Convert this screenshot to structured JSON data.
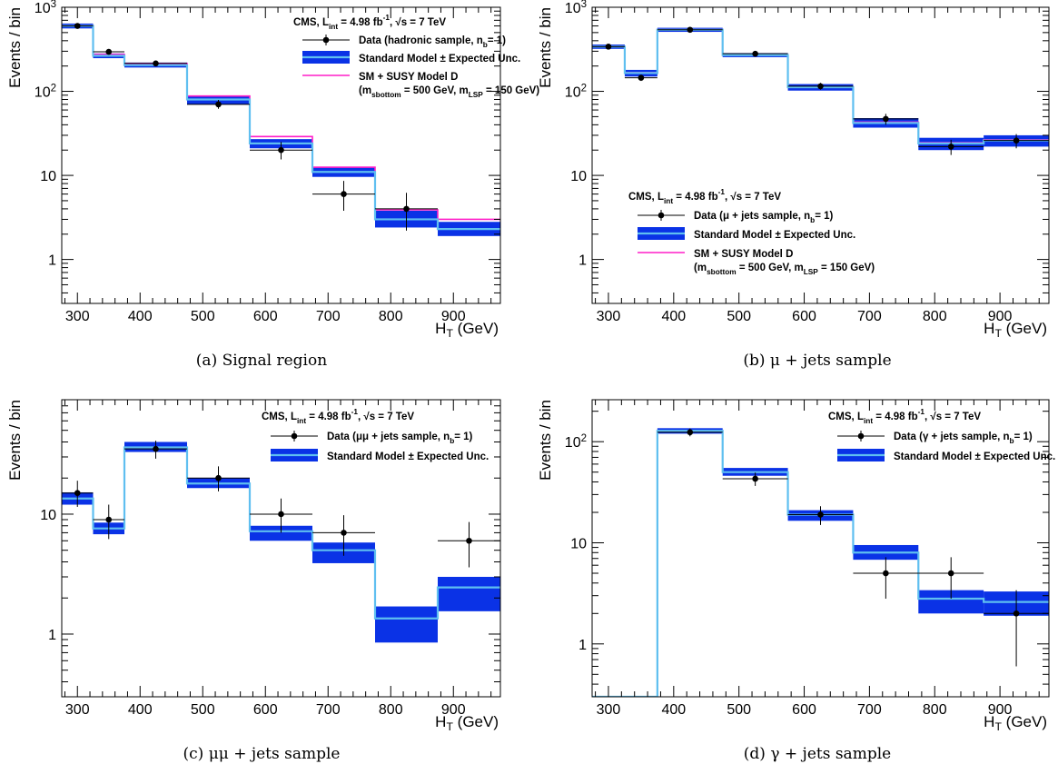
{
  "colors": {
    "sm_band": "#0a32e6",
    "sm_line": "#5fbff0",
    "susy": "#ff1ec8",
    "data": "#000000"
  },
  "chart_data": [
    {
      "id": "a",
      "type": "histogram",
      "caption": "(a) Signal region",
      "ylabel": "Events / bin",
      "xlabel": "H_T (GeV)",
      "yscale": "log",
      "xlim": [
        275,
        975
      ],
      "ylim": [
        0.3,
        1000
      ],
      "yticks": [
        1,
        10,
        100,
        1000
      ],
      "yticklabels": [
        "1",
        "10",
        "10^2",
        "10^3"
      ],
      "xticks": [
        300,
        400,
        500,
        600,
        700,
        800,
        900
      ],
      "bin_edges": [
        275,
        325,
        375,
        475,
        575,
        675,
        775,
        875,
        975
      ],
      "sm": [
        {
          "value": 600,
          "lo": 560,
          "hi": 640
        },
        {
          "value": 265,
          "lo": 248,
          "hi": 282
        },
        {
          "value": 205,
          "lo": 192,
          "hi": 220
        },
        {
          "value": 80,
          "lo": 70,
          "hi": 88
        },
        {
          "value": 24,
          "lo": 21,
          "hi": 27
        },
        {
          "value": 11,
          "lo": 9.6,
          "hi": 12.4
        },
        {
          "value": 3.0,
          "lo": 2.4,
          "hi": 3.8
        },
        {
          "value": 2.3,
          "lo": 1.9,
          "hi": 2.8
        }
      ],
      "susy": [
        605,
        275,
        215,
        88,
        29,
        12.5,
        3.9,
        3.0
      ],
      "data": [
        {
          "x": 300,
          "y": 600,
          "xerr": 25,
          "ylo": 575,
          "yhi": 625
        },
        {
          "x": 350,
          "y": 295,
          "xerr": 25,
          "ylo": 278,
          "yhi": 312
        },
        {
          "x": 425,
          "y": 215,
          "xerr": 50,
          "ylo": 200,
          "yhi": 230
        },
        {
          "x": 525,
          "y": 70,
          "xerr": 50,
          "ylo": 62,
          "yhi": 79
        },
        {
          "x": 625,
          "y": 20,
          "xerr": 50,
          "ylo": 15.5,
          "yhi": 25
        },
        {
          "x": 725,
          "y": 6,
          "xerr": 50,
          "ylo": 3.8,
          "yhi": 8.6
        },
        {
          "x": 825,
          "y": 4,
          "xerr": 50,
          "ylo": 2.2,
          "yhi": 6.2
        }
      ],
      "legend": {
        "position": "top-right",
        "header": "CMS, L_int = 4.98 fb^-1, √s = 7 TeV",
        "data": "Data (hadronic sample, n_b= 1)",
        "sm": "Standard Model ± Expected Unc.",
        "susy": "SM + SUSY Model D",
        "susy2": "(m_sbottom = 500 GeV, m_LSP = 150 GeV)"
      }
    },
    {
      "id": "b",
      "type": "histogram",
      "caption": "(b) μ + jets sample",
      "ylabel": "Events / bin",
      "xlabel": "H_T (GeV)",
      "yscale": "log",
      "xlim": [
        275,
        975
      ],
      "ylim": [
        0.3,
        1000
      ],
      "yticks": [
        1,
        10,
        100,
        1000
      ],
      "yticklabels": [
        "1",
        "10",
        "10^2",
        "10^3"
      ],
      "xticks": [
        300,
        400,
        500,
        600,
        700,
        800,
        900
      ],
      "bin_edges": [
        275,
        325,
        375,
        475,
        575,
        675,
        775,
        875,
        975
      ],
      "sm": [
        {
          "value": 340,
          "lo": 320,
          "hi": 360
        },
        {
          "value": 165,
          "lo": 150,
          "hi": 180
        },
        {
          "value": 540,
          "lo": 510,
          "hi": 570
        },
        {
          "value": 270,
          "lo": 255,
          "hi": 285
        },
        {
          "value": 112,
          "lo": 102,
          "hi": 122
        },
        {
          "value": 42,
          "lo": 37,
          "hi": 48
        },
        {
          "value": 24,
          "lo": 20,
          "hi": 28
        },
        {
          "value": 26,
          "lo": 22,
          "hi": 30
        }
      ],
      "susy": [
        342,
        167,
        545,
        272,
        113,
        43,
        24.5,
        26.5
      ],
      "data": [
        {
          "x": 300,
          "y": 340,
          "xerr": 25,
          "ylo": 322,
          "yhi": 358
        },
        {
          "x": 350,
          "y": 145,
          "xerr": 25,
          "ylo": 133,
          "yhi": 157
        },
        {
          "x": 425,
          "y": 540,
          "xerr": 50,
          "ylo": 517,
          "yhi": 563
        },
        {
          "x": 525,
          "y": 280,
          "xerr": 50,
          "ylo": 263,
          "yhi": 297
        },
        {
          "x": 625,
          "y": 115,
          "xerr": 50,
          "ylo": 105,
          "yhi": 126
        },
        {
          "x": 725,
          "y": 47,
          "xerr": 50,
          "ylo": 40,
          "yhi": 54
        },
        {
          "x": 825,
          "y": 22,
          "xerr": 50,
          "ylo": 17.5,
          "yhi": 26.5
        },
        {
          "x": 925,
          "y": 26,
          "xerr": 50,
          "ylo": 21,
          "yhi": 31
        }
      ],
      "legend": {
        "position": "middle-right",
        "header": "CMS, L_int = 4.98 fb^-1, √s = 7 TeV",
        "data": "Data (μ + jets sample, n_b= 1)",
        "sm": "Standard Model ± Expected Unc.",
        "susy": "SM + SUSY Model D",
        "susy2": "(m_sbottom = 500 GeV, m_LSP = 150 GeV)"
      }
    },
    {
      "id": "c",
      "type": "histogram",
      "caption": "(c) μμ + jets sample",
      "ylabel": "Events / bin",
      "xlabel": "H_T (GeV)",
      "yscale": "log",
      "xlim": [
        275,
        975
      ],
      "ylim": [
        0.3,
        90
      ],
      "yticks": [
        1,
        10
      ],
      "yticklabels": [
        "1",
        "10"
      ],
      "xticks": [
        300,
        400,
        500,
        600,
        700,
        800,
        900
      ],
      "bin_edges": [
        275,
        325,
        375,
        475,
        575,
        675,
        775,
        875,
        975
      ],
      "sm": [
        {
          "value": 13.5,
          "lo": 12,
          "hi": 15.2
        },
        {
          "value": 7.6,
          "lo": 6.8,
          "hi": 8.5
        },
        {
          "value": 36,
          "lo": 33,
          "hi": 40
        },
        {
          "value": 18,
          "lo": 16.5,
          "hi": 20
        },
        {
          "value": 7.2,
          "lo": 6.0,
          "hi": 8.0
        },
        {
          "value": 5.0,
          "lo": 3.9,
          "hi": 5.8
        },
        {
          "value": 1.35,
          "lo": 0.85,
          "hi": 1.7
        },
        {
          "value": 2.45,
          "lo": 1.55,
          "hi": 3.0
        }
      ],
      "susy": null,
      "data": [
        {
          "x": 300,
          "y": 15,
          "xerr": 25,
          "ylo": 11.5,
          "yhi": 19
        },
        {
          "x": 350,
          "y": 9,
          "xerr": 25,
          "ylo": 6.2,
          "yhi": 12
        },
        {
          "x": 425,
          "y": 35,
          "xerr": 50,
          "ylo": 29,
          "yhi": 41
        },
        {
          "x": 525,
          "y": 20,
          "xerr": 50,
          "ylo": 15.5,
          "yhi": 25
        },
        {
          "x": 625,
          "y": 10,
          "xerr": 50,
          "ylo": 7,
          "yhi": 13.5
        },
        {
          "x": 725,
          "y": 7,
          "xerr": 50,
          "ylo": 4.5,
          "yhi": 9.8
        },
        {
          "x": 925,
          "y": 6,
          "xerr": 50,
          "ylo": 3.6,
          "yhi": 8.6
        }
      ],
      "legend": {
        "position": "top-right",
        "header": "CMS, L_int = 4.98 fb^-1, √s = 7 TeV",
        "data": "Data (μμ + jets sample, n_b= 1)",
        "sm": "Standard Model ± Expected Unc."
      }
    },
    {
      "id": "d",
      "type": "histogram",
      "caption": "(d) γ + jets sample",
      "ylabel": "Events / bin",
      "xlabel": "H_T (GeV)",
      "yscale": "log",
      "xlim": [
        275,
        975
      ],
      "ylim": [
        0.3,
        260
      ],
      "yticks": [
        1,
        10,
        100
      ],
      "yticklabels": [
        "1",
        "10",
        "10^2"
      ],
      "xticks": [
        300,
        400,
        500,
        600,
        700,
        800,
        900
      ],
      "bin_edges": [
        275,
        325,
        375,
        475,
        575,
        675,
        775,
        875,
        975
      ],
      "sm": [
        {
          "value": 0.3,
          "lo": null,
          "hi": null
        },
        {
          "value": 0.3,
          "lo": null,
          "hi": null
        },
        {
          "value": 128,
          "lo": 120,
          "hi": 136
        },
        {
          "value": 50,
          "lo": 46,
          "hi": 55
        },
        {
          "value": 19,
          "lo": 16.5,
          "hi": 21
        },
        {
          "value": 8,
          "lo": 6.8,
          "hi": 9.5
        },
        {
          "value": 2.8,
          "lo": 2.0,
          "hi": 3.4
        },
        {
          "value": 2.6,
          "lo": 1.9,
          "hi": 3.3
        }
      ],
      "susy": null,
      "data": [
        {
          "x": 425,
          "y": 124,
          "xerr": 50,
          "ylo": 113,
          "yhi": 135
        },
        {
          "x": 525,
          "y": 43,
          "xerr": 50,
          "ylo": 36.5,
          "yhi": 49.5
        },
        {
          "x": 625,
          "y": 19,
          "xerr": 50,
          "ylo": 15,
          "yhi": 23
        },
        {
          "x": 725,
          "y": 5,
          "xerr": 50,
          "ylo": 2.8,
          "yhi": 7.2
        },
        {
          "x": 825,
          "y": 5,
          "xerr": 50,
          "ylo": 2.8,
          "yhi": 7.2
        },
        {
          "x": 925,
          "y": 2,
          "xerr": 50,
          "ylo": 0.6,
          "yhi": 3.4
        }
      ],
      "legend": {
        "position": "top-right",
        "header": "CMS, L_int = 4.98 fb^-1, √s = 7 TeV",
        "data": "Data (γ + jets sample, n_b= 1)",
        "sm": "Standard Model ± Expected Unc."
      }
    }
  ]
}
